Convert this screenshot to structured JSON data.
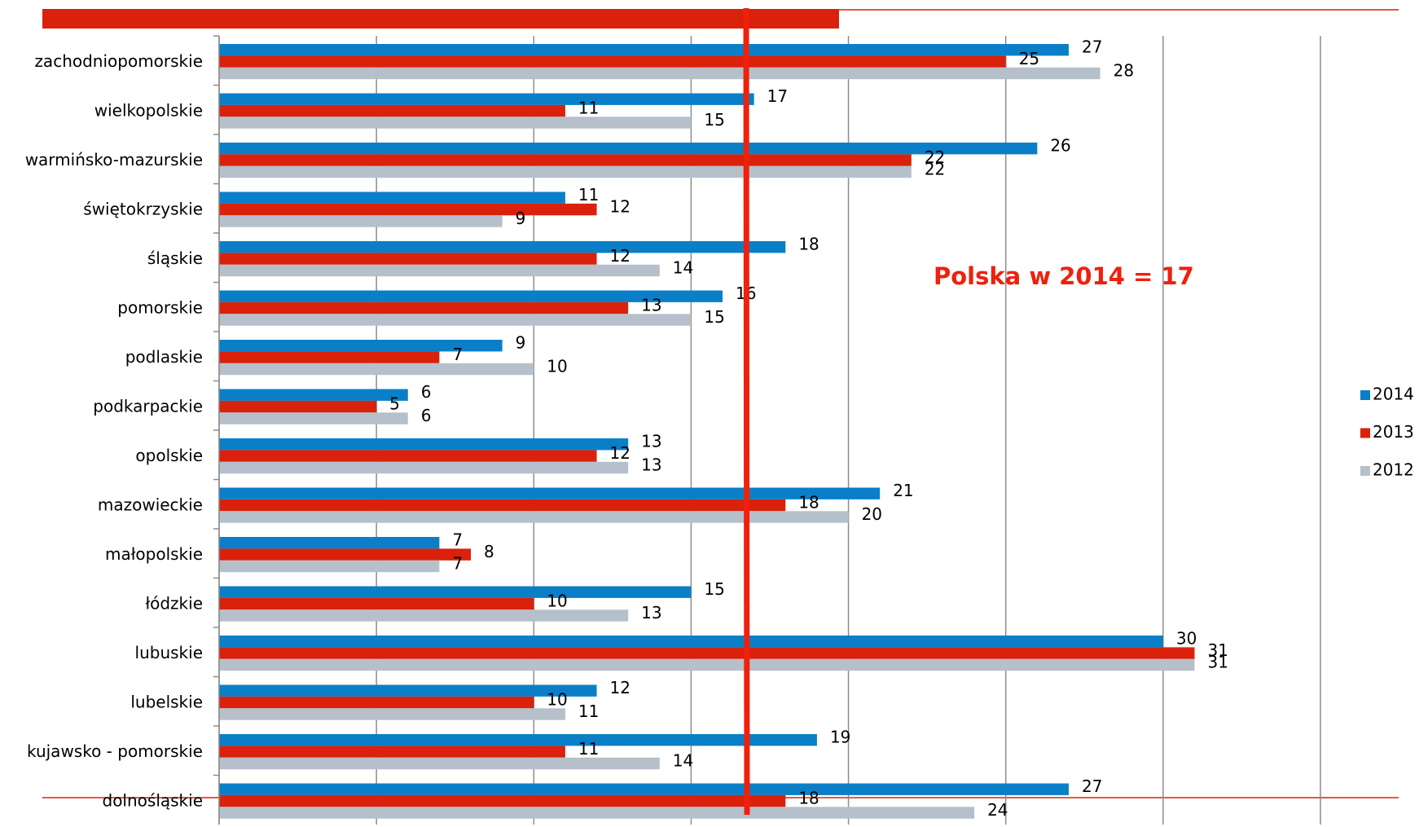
{
  "chart_data": {
    "type": "barh",
    "annotation": "Polska w 2014 = 17",
    "categories": [
      "zachodniopomorskie",
      "wielkopolskie",
      "warmińsko-mazurskie",
      "świętokrzyskie",
      "śląskie",
      "pomorskie",
      "podlaskie",
      "podkarpackie",
      "opolskie",
      "mazowieckie",
      "małopolskie",
      "łódzkie",
      "lubuskie",
      "lubelskie",
      "kujawsko - pomorskie",
      "dolnośląskie"
    ],
    "series": [
      {
        "name": "2014",
        "color": "#0a7fc8",
        "values": [
          27,
          17,
          26,
          11,
          18,
          16,
          9,
          6,
          13,
          21,
          7,
          15,
          30,
          12,
          19,
          27
        ]
      },
      {
        "name": "2013",
        "color": "#d9210c",
        "values": [
          25,
          11,
          22,
          12,
          12,
          13,
          7,
          5,
          12,
          18,
          8,
          10,
          31,
          10,
          11,
          18
        ]
      },
      {
        "name": "2012",
        "color": "#b6c0cb",
        "values": [
          28,
          15,
          22,
          9,
          14,
          15,
          10,
          6,
          13,
          20,
          7,
          13,
          31,
          11,
          14,
          24
        ]
      }
    ],
    "xlim": [
      0,
      35
    ],
    "xticks": [
      0,
      5,
      10,
      15,
      20,
      25,
      30,
      35
    ],
    "grid": true,
    "legend": "right"
  }
}
